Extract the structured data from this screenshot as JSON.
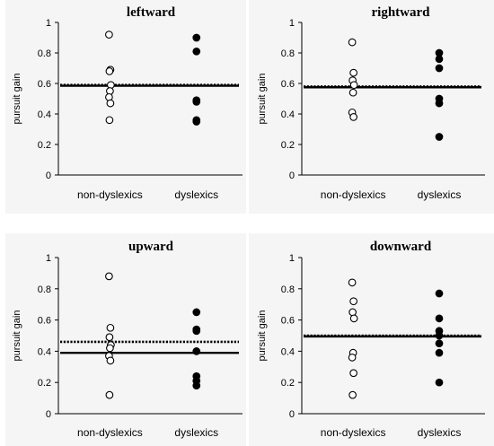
{
  "figure": {
    "background": "#ffffff",
    "panel_background": "#f5f5f5"
  },
  "chart_data": [
    {
      "type": "scatter",
      "title": "leftward",
      "ylabel": "pursuit gain",
      "categories": [
        "non-dyslexics",
        "dyslexics"
      ],
      "ylim": [
        0,
        1
      ],
      "yticks": [
        "0",
        "0.2",
        "0.4",
        "0.6",
        "0.8",
        "1"
      ],
      "series": [
        {
          "name": "non-dyslexics",
          "marker": "open-circle",
          "values": [
            0.92,
            0.69,
            0.68,
            0.59,
            0.55,
            0.51,
            0.47,
            0.36
          ]
        },
        {
          "name": "dyslexics",
          "marker": "filled-circle",
          "values": [
            0.9,
            0.81,
            0.49,
            0.48,
            0.36,
            0.35
          ]
        }
      ],
      "reference_lines": [
        {
          "style": "solid",
          "value": 0.585
        },
        {
          "style": "dotted",
          "value": 0.59
        }
      ],
      "grid": false
    },
    {
      "type": "scatter",
      "title": "rightward",
      "ylabel": "pursuit gain",
      "categories": [
        "non-dyslexics",
        "dyslexics"
      ],
      "ylim": [
        0,
        1
      ],
      "yticks": [
        "0",
        "0.2",
        "0.4",
        "0.6",
        "0.8",
        "1"
      ],
      "series": [
        {
          "name": "non-dyslexics",
          "marker": "open-circle",
          "values": [
            0.87,
            0.67,
            0.62,
            0.59,
            0.54,
            0.41,
            0.38
          ]
        },
        {
          "name": "dyslexics",
          "marker": "filled-circle",
          "values": [
            0.8,
            0.76,
            0.7,
            0.5,
            0.47,
            0.25
          ]
        }
      ],
      "reference_lines": [
        {
          "style": "solid",
          "value": 0.575
        },
        {
          "style": "dotted",
          "value": 0.58
        }
      ],
      "grid": false
    },
    {
      "type": "scatter",
      "title": "upward",
      "ylabel": "pursuit gain",
      "categories": [
        "non-dyslexics",
        "dyslexics"
      ],
      "ylim": [
        0,
        1
      ],
      "yticks": [
        "0",
        "0.2",
        "0.4",
        "0.6",
        "0.8",
        "1"
      ],
      "series": [
        {
          "name": "non-dyslexics",
          "marker": "open-circle",
          "values": [
            0.88,
            0.55,
            0.49,
            0.44,
            0.42,
            0.37,
            0.34,
            0.12
          ]
        },
        {
          "name": "dyslexics",
          "marker": "filled-circle",
          "values": [
            0.65,
            0.54,
            0.53,
            0.4,
            0.24,
            0.21,
            0.18
          ]
        }
      ],
      "reference_lines": [
        {
          "style": "solid",
          "value": 0.39
        },
        {
          "style": "dotted",
          "value": 0.46
        }
      ],
      "grid": false
    },
    {
      "type": "scatter",
      "title": "downward",
      "ylabel": "pursuit gain",
      "categories": [
        "non-dyslexics",
        "dyslexics"
      ],
      "ylim": [
        0,
        1
      ],
      "yticks": [
        "0",
        "0.2",
        "0.4",
        "0.6",
        "0.8",
        "1"
      ],
      "series": [
        {
          "name": "non-dyslexics",
          "marker": "open-circle",
          "values": [
            0.84,
            0.72,
            0.65,
            0.61,
            0.39,
            0.36,
            0.26,
            0.12
          ]
        },
        {
          "name": "dyslexics",
          "marker": "filled-circle",
          "values": [
            0.77,
            0.61,
            0.53,
            0.5,
            0.45,
            0.39,
            0.2
          ]
        }
      ],
      "reference_lines": [
        {
          "style": "solid",
          "value": 0.495
        },
        {
          "style": "dotted",
          "value": 0.5
        }
      ],
      "grid": false
    }
  ]
}
